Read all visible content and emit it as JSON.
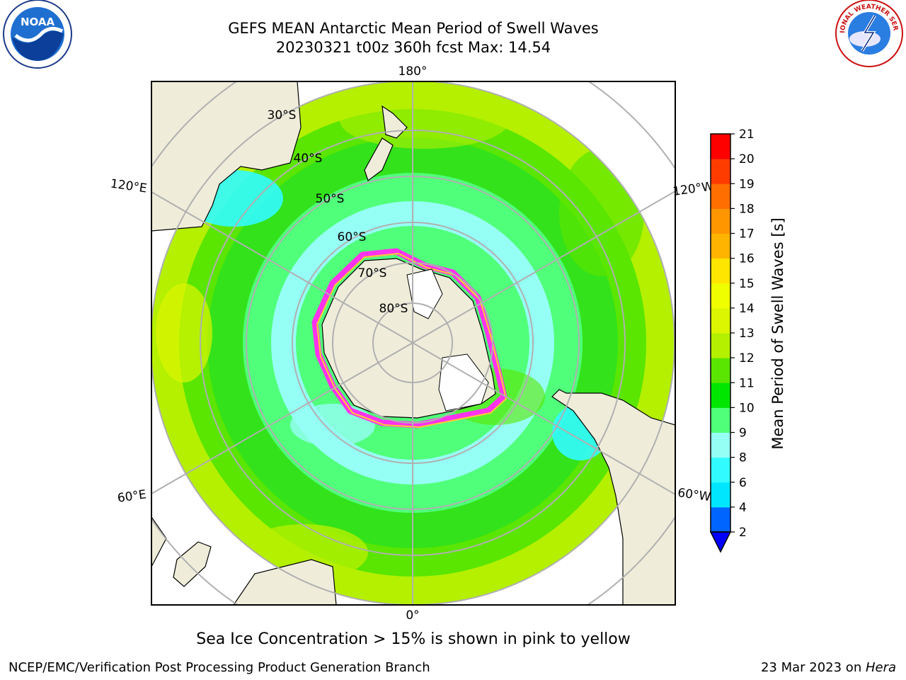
{
  "header": {
    "title_line1": "GEFS MEAN Antarctic Mean Period of Swell Waves",
    "title_line2": "20230321 t00z 360h fcst   Max: 14.54"
  },
  "logos": {
    "left_text": "NOAA",
    "right_text": "NATIONAL WEATHER SERVICE"
  },
  "map": {
    "projection": "south-polar-stereographic",
    "longitude_labels": {
      "top": "180°",
      "bottom": "0°",
      "upper_left": "120°E",
      "upper_right": "120°W",
      "lower_left": "60°E",
      "lower_right": "60°W"
    },
    "latitude_labels": [
      "30°S",
      "40°S",
      "50°S",
      "60°S",
      "70°S",
      "80°S"
    ],
    "colors": {
      "land": "#efedda",
      "ocean_green": "#33dd22",
      "ice_edge": "#ff33ee"
    }
  },
  "colorbar": {
    "label": "Mean Period of Swell Waves [s]",
    "ticks": [
      "2",
      "4",
      "6",
      "8",
      "9",
      "10",
      "11",
      "12",
      "13",
      "14",
      "15",
      "16",
      "17",
      "18",
      "19",
      "20",
      "21"
    ],
    "colors": [
      "#0064ff",
      "#00e6ff",
      "#32fbff",
      "#96fff5",
      "#50ff7a",
      "#00e600",
      "#5ae600",
      "#b4f000",
      "#dcf500",
      "#f0ff00",
      "#ffe600",
      "#ffb400",
      "#ff9600",
      "#ff6e00",
      "#ff3c00",
      "#ff0000"
    ],
    "underflow_color": "#0000ff"
  },
  "note": "Sea Ice Concentration > 15% is shown in pink to yellow",
  "footer": {
    "left": "NCEP/EMC/Verification Post Processing Product Generation Branch",
    "date": "23 Mar 2023 on ",
    "host": "Hera"
  }
}
